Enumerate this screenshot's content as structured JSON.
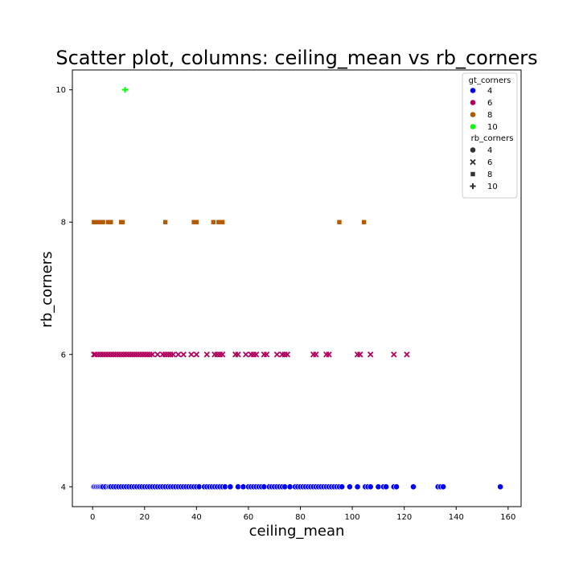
{
  "chart_data": {
    "type": "scatter",
    "title": "Scatter plot, columns: ceiling_mean vs rb_corners",
    "xlabel": "ceiling_mean",
    "ylabel": "rb_corners",
    "xlim": [
      -7.8,
      165
    ],
    "ylim": [
      3.7,
      10.3
    ],
    "xticks": [
      0,
      20,
      40,
      60,
      80,
      100,
      120,
      140,
      160
    ],
    "yticks": [
      4,
      6,
      8,
      10
    ],
    "grid": false,
    "legend": {
      "placement": "top-right",
      "hue_title": "gt_corners",
      "hue_entries": [
        {
          "label": "4",
          "color": "#0000ff"
        },
        {
          "label": "6",
          "color": "#b0005e"
        },
        {
          "label": "8",
          "color": "#b35900"
        },
        {
          "label": "10",
          "color": "#00ff00"
        }
      ],
      "style_title": "rb_corners",
      "style_entries": [
        {
          "label": "4",
          "marker": "circle"
        },
        {
          "label": "6",
          "marker": "x"
        },
        {
          "label": "8",
          "marker": "square"
        },
        {
          "label": "10",
          "marker": "plus"
        }
      ]
    },
    "series": [
      {
        "name": "4",
        "color": "#0000ff",
        "marker": "circle",
        "y": 4,
        "x": [
          0.5,
          1,
          1.5,
          2,
          2.5,
          3,
          3.5,
          4,
          5,
          6,
          6.5,
          7,
          8,
          9,
          10,
          11,
          12,
          13,
          14,
          15,
          16,
          17,
          18,
          19,
          20,
          21,
          22,
          23,
          24,
          25,
          26,
          27,
          28,
          29,
          30,
          31,
          32,
          33,
          34,
          35,
          36,
          37,
          38,
          39,
          40,
          41,
          43,
          44,
          45,
          46,
          47,
          48,
          49,
          50,
          51,
          53,
          56,
          58,
          60,
          61,
          62,
          63,
          64,
          65,
          66,
          68,
          69,
          70,
          71,
          72,
          73,
          74,
          76,
          78,
          79,
          80,
          81,
          82,
          83,
          84,
          85,
          86,
          87,
          88,
          89,
          90,
          91,
          92,
          93,
          94,
          95,
          96,
          99,
          102,
          105,
          106,
          107,
          110,
          112,
          113,
          116,
          117,
          123.5,
          133,
          134,
          135,
          157
        ]
      },
      {
        "name": "6",
        "color": "#b0005e",
        "marker": "x",
        "y": 6,
        "x": [
          0.5,
          1,
          2,
          3,
          4,
          5,
          6,
          7,
          8,
          9,
          10,
          11,
          12,
          13,
          14,
          15,
          16,
          17,
          18,
          19,
          20,
          21,
          22,
          23,
          25,
          27,
          28,
          29,
          30,
          31,
          33,
          35,
          38,
          40,
          44,
          47,
          48,
          49,
          50,
          55,
          56,
          59,
          61,
          62,
          63,
          66,
          67,
          71,
          73,
          74,
          75,
          85,
          86,
          90,
          91,
          102,
          103,
          107,
          116,
          121
        ]
      },
      {
        "name": "8",
        "color": "#b35900",
        "marker": "square",
        "y": 8,
        "x": [
          0.5,
          1.5,
          3,
          4,
          6,
          7,
          11,
          11.5,
          28,
          39,
          40,
          46.5,
          48.5,
          50,
          95,
          104.5
        ]
      },
      {
        "name": "10",
        "color": "#00ff00",
        "marker": "plus",
        "y": 10,
        "x": [
          12.5
        ]
      }
    ]
  }
}
